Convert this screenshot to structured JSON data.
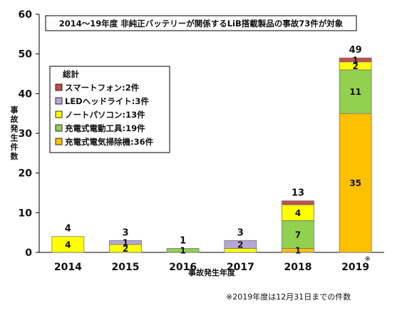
{
  "chart_data": {
    "type": "bar",
    "stacked": true,
    "categories": [
      "2014",
      "2015",
      "2016",
      "2017",
      "2018",
      "2019"
    ],
    "category_marks": [
      "",
      "",
      "",
      "",
      "",
      "※"
    ],
    "series": [
      {
        "name": "充電式電気掃除機:36件",
        "color": "#FFC000",
        "values": [
          0,
          0,
          0,
          0,
          1,
          35
        ]
      },
      {
        "name": "充電式電動工具:19件",
        "color": "#92D050",
        "values": [
          0,
          0,
          1,
          0,
          7,
          11
        ]
      },
      {
        "name": "ノートパソコン:13件",
        "color": "#FFFF00",
        "values": [
          4,
          2,
          0,
          1,
          4,
          2
        ]
      },
      {
        "name": "LEDヘッドライト:3件",
        "color": "#B4A7D6",
        "values": [
          0,
          1,
          0,
          2,
          0,
          0
        ]
      },
      {
        "name": "スマートフォン:2件",
        "color": "#C0504D",
        "values": [
          0,
          0,
          0,
          0,
          1,
          1
        ]
      }
    ],
    "segment_labels": [
      [
        "",
        "",
        "",
        "",
        "1",
        "35"
      ],
      [
        "",
        "",
        "1",
        "",
        "7",
        "11"
      ],
      [
        "4",
        "2",
        "",
        "",
        "4",
        "2"
      ],
      [
        "",
        "1",
        "",
        "2",
        "",
        ""
      ],
      [
        "",
        "",
        "",
        "",
        "",
        "1"
      ]
    ],
    "totals": [
      "4",
      "3",
      "1",
      "3",
      "13",
      "49"
    ],
    "title": "2014〜19年度 非純正バッテリーが関係するLiB搭載製品の事故73件が対象",
    "xlabel": "事故発生年度",
    "ylabel": "事故発生件数",
    "ylim": [
      0,
      60
    ],
    "yticks": [
      0,
      10,
      20,
      30,
      40,
      50,
      60
    ],
    "legend_title": "総計",
    "legend_position": "upper-left",
    "grid": false,
    "footnote": "※2019年度は12月31日までの件数"
  }
}
